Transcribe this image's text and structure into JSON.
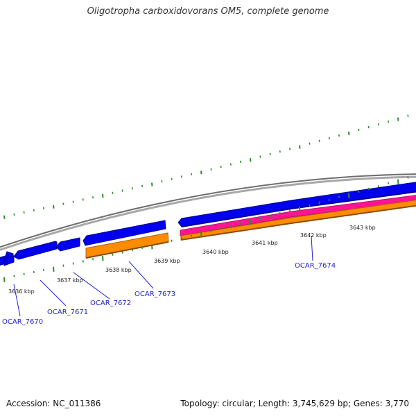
{
  "title": "Oligotropha carboxidovorans OM5, complete genome",
  "colors": {
    "backbone": "#8c8c8c",
    "forward_cds": "#0000ee",
    "reverse_cds": "#ff8c00",
    "gc_track": "#ff1493",
    "ticks": "#2e8b2e",
    "locus_labels": "#1f1fcc"
  },
  "ruler": {
    "labels": [
      "3636 kbp",
      "3637 kbp",
      "3638 kbp",
      "3639 kbp",
      "3640 kbp",
      "3641 kbp",
      "3642 kbp",
      "3643 kbp"
    ]
  },
  "genes": [
    {
      "locus": "OCAR_7670"
    },
    {
      "locus": "OCAR_7671"
    },
    {
      "locus": "OCAR_7672"
    },
    {
      "locus": "OCAR_7673"
    },
    {
      "locus": "OCAR_7674"
    }
  ],
  "footer": {
    "accession": "Accession: NC_011386",
    "summary": "Topology: circular; Length: 3,745,629 bp; Genes: 3,770"
  }
}
